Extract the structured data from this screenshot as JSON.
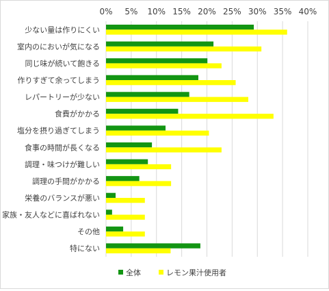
{
  "colors": {
    "series_all": "#139513",
    "series_lemon": "#ffff00",
    "grid": "#d9d9d9",
    "text": "#404040"
  },
  "chart_data": {
    "type": "bar",
    "orientation": "horizontal",
    "categories": [
      "少ない量は作りにくい",
      "室内のにおいが気になる",
      "同じ味が続いて飽きる",
      "作りすぎて余ってしまう",
      "レパートリーが少ない",
      "食費がかかる",
      "塩分を摂り過ぎてしまう",
      "食事の時間が長くなる",
      "調理・味つけが難しい",
      "調理の手間がかかる",
      "栄養のバランスが悪い",
      "家族・友人などに喜ばれない",
      "その他",
      "特にない"
    ],
    "series": [
      {
        "name": "全体",
        "color": "#139513",
        "values": [
          29.3,
          21.3,
          20.1,
          18.3,
          16.5,
          14.3,
          11.8,
          9.1,
          8.3,
          6.6,
          1.9,
          1.2,
          3.4,
          18.7
        ]
      },
      {
        "name": "レモン果汁使用者",
        "color": "#ffff00",
        "values": [
          35.9,
          30.8,
          22.9,
          25.7,
          28.2,
          33.2,
          20.4,
          22.9,
          12.9,
          12.9,
          7.7,
          7.7,
          7.7,
          12.8
        ]
      }
    ],
    "xlim": [
      0,
      40
    ],
    "xticks": [
      "0%",
      "5%",
      "10%",
      "15%",
      "20%",
      "25%",
      "30%",
      "35%",
      "40%"
    ],
    "grid": "vertical",
    "legend_position": "bottom",
    "title": "",
    "xlabel": "",
    "ylabel": ""
  }
}
